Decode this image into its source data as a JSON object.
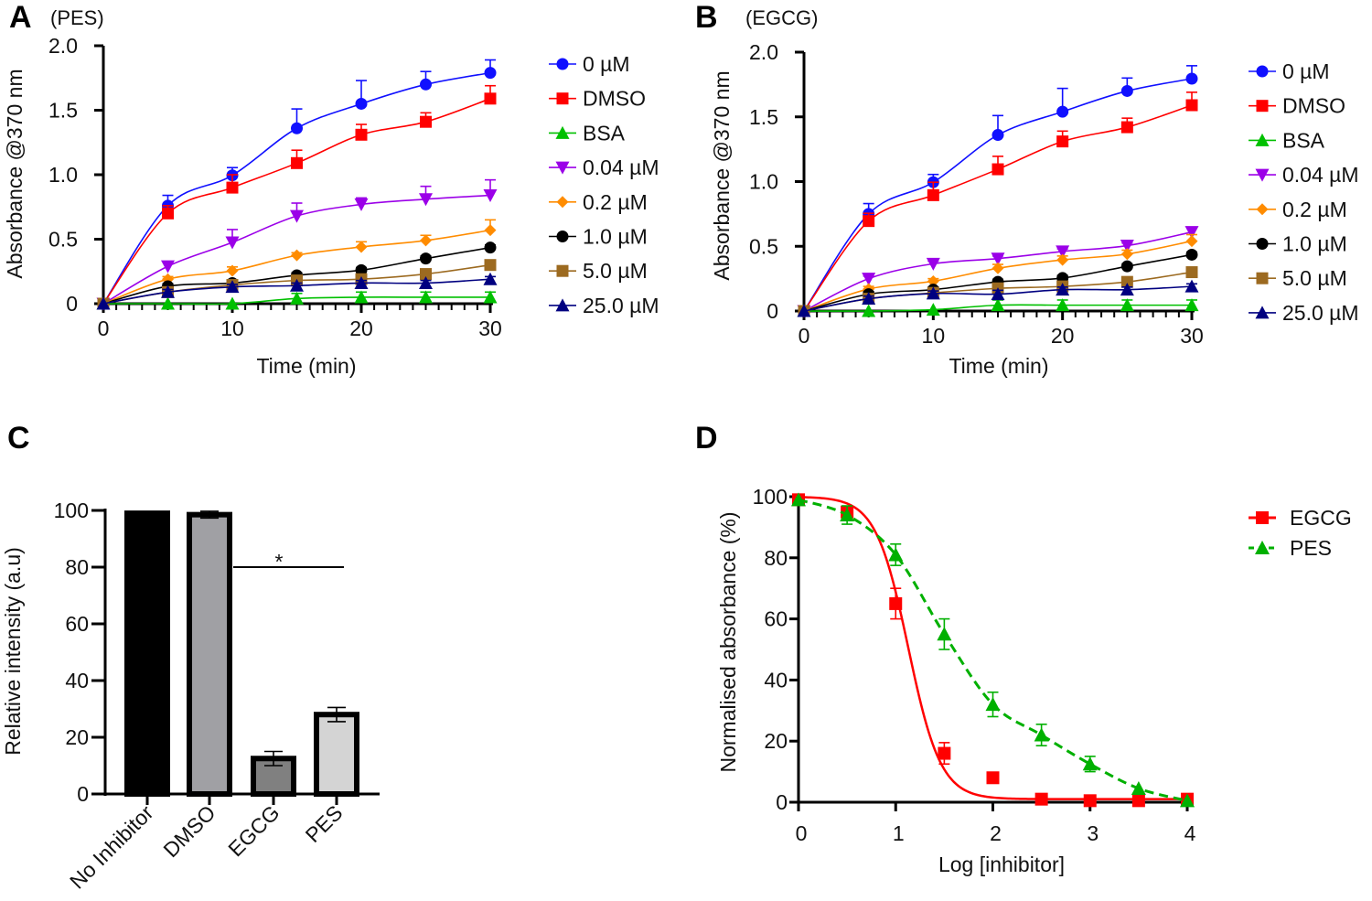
{
  "colors": {
    "0 µM": "#1010ff",
    "DMSO": "#ff0000",
    "BSA": "#00c000",
    "0.04 µM": "#9b00e8",
    "0.2 µM": "#ff8c00",
    "1.0 µM": "#000000",
    "5.0 µM": "#9c6a20",
    "25.0 µM": "#000080"
  },
  "chart_data": [
    {
      "panel": "A",
      "subtitle": "(PES)",
      "type": "line",
      "xlabel": "Time (min)",
      "ylabel": "Absorbance @370 nm",
      "xlim": [
        0,
        30
      ],
      "ylim": [
        0,
        2.0
      ],
      "xticks": [
        "0",
        "10",
        "20",
        "30"
      ],
      "yticks": [
        "2.0",
        "1.5",
        "1.0",
        "0.5",
        "0"
      ],
      "x": [
        0,
        5,
        10,
        15,
        20,
        25,
        30
      ],
      "legend": "right",
      "series": [
        {
          "name": "0 µM",
          "marker": "circle",
          "values": [
            0,
            0.76,
            0.995,
            1.36,
            1.55,
            1.7,
            1.79
          ],
          "err": [
            0,
            0.08,
            0.06,
            0.15,
            0.18,
            0.1,
            0.1
          ]
        },
        {
          "name": "DMSO",
          "marker": "square",
          "values": [
            0,
            0.7,
            0.9,
            1.09,
            1.31,
            1.41,
            1.59
          ],
          "err": [
            0,
            0.06,
            0.1,
            0.1,
            0.08,
            0.07,
            0.1
          ]
        },
        {
          "name": "BSA",
          "marker": "triangle-up",
          "values": [
            0,
            0,
            0,
            0.04,
            0.05,
            0.05,
            0.05
          ],
          "err": [
            0,
            0,
            0,
            0.04,
            0.04,
            0.04,
            0.04
          ]
        },
        {
          "name": "0.04 µM",
          "marker": "triangle-down",
          "values": [
            0,
            0.29,
            0.475,
            0.68,
            0.77,
            0.81,
            0.84
          ],
          "err": [
            0,
            0.03,
            0.1,
            0.1,
            0.05,
            0.1,
            0.12
          ]
        },
        {
          "name": "0.2 µM",
          "marker": "diamond",
          "values": [
            0,
            0.19,
            0.255,
            0.375,
            0.44,
            0.49,
            0.57
          ],
          "err": [
            0,
            0.02,
            0.03,
            0.02,
            0.04,
            0.04,
            0.08
          ]
        },
        {
          "name": "1.0 µM",
          "marker": "circle",
          "values": [
            0,
            0.135,
            0.16,
            0.22,
            0.26,
            0.35,
            0.435
          ],
          "err": [
            0,
            0.02,
            0.02,
            0.02,
            0.02,
            0.02,
            0.02
          ]
        },
        {
          "name": "5.0 µM",
          "marker": "square",
          "values": [
            0,
            0.09,
            0.145,
            0.18,
            0.19,
            0.23,
            0.3
          ],
          "err": [
            0,
            0.02,
            0.02,
            0.02,
            0.02,
            0.02,
            0.02
          ]
        },
        {
          "name": "25.0 µM",
          "marker": "triangle-up",
          "values": [
            0,
            0.09,
            0.13,
            0.14,
            0.16,
            0.16,
            0.19
          ],
          "err": [
            0,
            0.02,
            0.02,
            0.02,
            0.02,
            0.02,
            0.02
          ]
        }
      ]
    },
    {
      "panel": "B",
      "subtitle": "(EGCG)",
      "type": "line",
      "xlabel": "Time (min)",
      "ylabel": "Absorbance @370 nm",
      "xlim": [
        0,
        30
      ],
      "ylim": [
        0,
        2.0
      ],
      "xticks": [
        "0",
        "10",
        "20",
        "30"
      ],
      "yticks": [
        "2.0",
        "1.5",
        "1.0",
        "0.5",
        "0"
      ],
      "x": [
        0,
        5,
        10,
        15,
        20,
        25,
        30
      ],
      "legend": "right",
      "series": [
        {
          "name": "0 µM",
          "marker": "circle",
          "values": [
            0,
            0.75,
            0.995,
            1.36,
            1.54,
            1.7,
            1.795
          ],
          "err": [
            0,
            0.08,
            0.06,
            0.15,
            0.18,
            0.1,
            0.1
          ]
        },
        {
          "name": "DMSO",
          "marker": "square",
          "values": [
            0,
            0.695,
            0.895,
            1.095,
            1.31,
            1.42,
            1.59
          ],
          "err": [
            0,
            0.06,
            0.1,
            0.1,
            0.08,
            0.07,
            0.1
          ]
        },
        {
          "name": "BSA",
          "marker": "triangle-up",
          "values": [
            0,
            0,
            0.01,
            0.045,
            0.045,
            0.045,
            0.045
          ],
          "err": [
            0,
            0,
            0,
            0.04,
            0.04,
            0.04,
            0.04
          ]
        },
        {
          "name": "0.04 µM",
          "marker": "triangle-down",
          "values": [
            0,
            0.25,
            0.365,
            0.405,
            0.46,
            0.505,
            0.61
          ],
          "err": [
            0,
            0.02,
            0.02,
            0.02,
            0.02,
            0.02,
            0.03
          ]
        },
        {
          "name": "0.2 µM",
          "marker": "diamond",
          "values": [
            0,
            0.17,
            0.23,
            0.33,
            0.395,
            0.44,
            0.54
          ],
          "err": [
            0,
            0.02,
            0.02,
            0.03,
            0.03,
            0.03,
            0.05
          ]
        },
        {
          "name": "1.0 µM",
          "marker": "circle",
          "values": [
            0,
            0.13,
            0.165,
            0.225,
            0.255,
            0.345,
            0.435
          ],
          "err": [
            0,
            0.02,
            0.02,
            0.02,
            0.02,
            0.02,
            0.02
          ]
        },
        {
          "name": "5.0 µM",
          "marker": "square",
          "values": [
            0,
            0.095,
            0.14,
            0.175,
            0.19,
            0.225,
            0.3
          ],
          "err": [
            0,
            0.02,
            0.02,
            0.02,
            0.02,
            0.02,
            0.02
          ]
        },
        {
          "name": "25.0 µM",
          "marker": "triangle-up",
          "values": [
            0,
            0.095,
            0.135,
            0.13,
            0.165,
            0.165,
            0.19
          ],
          "err": [
            0,
            0.02,
            0.02,
            0.03,
            0.02,
            0.02,
            0.02
          ]
        }
      ]
    },
    {
      "panel": "C",
      "type": "bar",
      "ylabel": "Relative intensity (a.u)",
      "ylim": [
        0,
        100
      ],
      "yticks": [
        "100",
        "80",
        "60",
        "40",
        "20",
        "0"
      ],
      "categories": [
        "No Inhibitor",
        "DMSO",
        "EGCG",
        "PES"
      ],
      "values": [
        99,
        98.5,
        12.5,
        28
      ],
      "err": [
        0.5,
        1.2,
        2.5,
        2.5
      ],
      "bar_colors": [
        "#000000",
        "#a0a0a4",
        "#808080",
        "#d4d4d4"
      ],
      "annotation": {
        "text": "*",
        "from": "DMSO",
        "to": "PES",
        "y": 80
      }
    },
    {
      "panel": "D",
      "type": "line",
      "xlabel": "Log [inhibitor]",
      "ylabel": "Normalised absorbance (%)",
      "xlim": [
        0,
        4
      ],
      "ylim": [
        0,
        100
      ],
      "xticks": [
        "0",
        "1",
        "2",
        "3",
        "4"
      ],
      "yticks": [
        "100",
        "80",
        "60",
        "40",
        "20",
        "0"
      ],
      "x": [
        0,
        0.5,
        1,
        1.5,
        2,
        2.5,
        3,
        3.5,
        4
      ],
      "legend": "top-right",
      "series": [
        {
          "name": "EGCG",
          "marker": "square",
          "color": "#ff0000",
          "line": "solid",
          "values": [
            99,
            95,
            65,
            16,
            8,
            1,
            0.5,
            0.5,
            1
          ],
          "err": [
            0,
            1,
            5,
            3.5,
            0,
            0,
            0,
            0,
            0
          ]
        },
        {
          "name": "PES",
          "marker": "triangle-up",
          "color": "#00b000",
          "line": "dashed",
          "values": [
            99,
            94,
            81,
            55,
            32,
            22,
            12.5,
            4.5,
            0.5
          ],
          "err": [
            0,
            3,
            3.5,
            5,
            4,
            3.5,
            2.5,
            0,
            0
          ]
        }
      ]
    }
  ]
}
